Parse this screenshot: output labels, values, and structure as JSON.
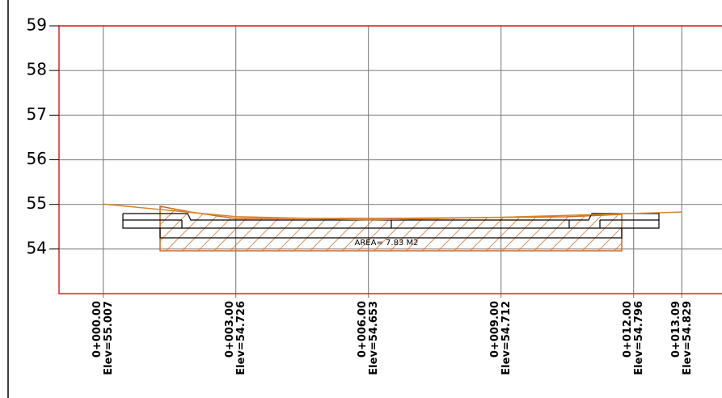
{
  "chart_data": {
    "type": "line",
    "x": [
      0,
      3,
      6,
      9,
      12,
      13.09
    ],
    "series": [
      {
        "color": "#d4862a",
        "values": [
          55.007,
          54.726,
          54.653,
          54.712,
          54.796,
          54.829
        ],
        "value_labels": [
          "Elev=55.007",
          "Elev=54.726",
          "Elev=54.653",
          "Elev=54.712",
          "Elev=54.796",
          "Elev=54.829"
        ]
      }
    ],
    "xlim": [
      -1,
      14
    ],
    "ylim": [
      53,
      59
    ],
    "xticks": [
      {
        "value": 0,
        "label": "0+000.00"
      },
      {
        "value": 3,
        "label": "0+003.00"
      },
      {
        "value": 6,
        "label": "0+006.00"
      },
      {
        "value": 9,
        "label": "0+009.00"
      },
      {
        "value": 12,
        "label": "0+012.00"
      },
      {
        "value": 13.09,
        "label": "0+013.09"
      }
    ],
    "yticks": [
      54,
      55,
      56,
      57,
      58,
      59
    ],
    "grid": true,
    "annotation": "AREA= 7.83 M2"
  }
}
